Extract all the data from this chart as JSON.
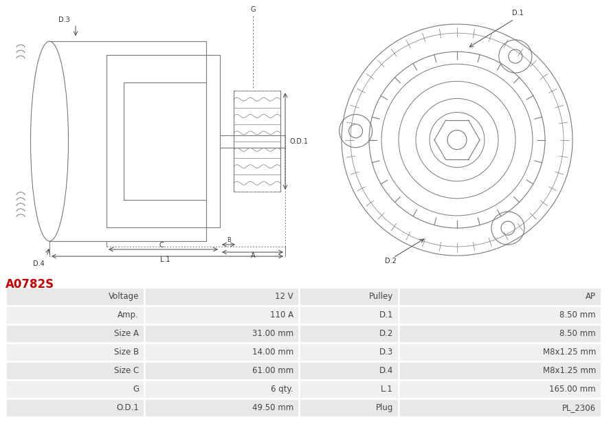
{
  "title": "A0782S",
  "title_color": "#cc0000",
  "bg_color": "#ffffff",
  "table_row_bg1": "#e8e8e8",
  "table_row_bg2": "#f0f0f0",
  "table_border_color": "#ffffff",
  "left_labels": [
    "Voltage",
    "Amp.",
    "Size A",
    "Size B",
    "Size C",
    "G",
    "O.D.1"
  ],
  "left_values": [
    "12 V",
    "110 A",
    "31.00 mm",
    "14.00 mm",
    "61.00 mm",
    "6 qty.",
    "49.50 mm"
  ],
  "right_labels": [
    "Pulley",
    "D.1",
    "D.2",
    "D.3",
    "D.4",
    "L.1",
    "Plug"
  ],
  "right_values": [
    "AP",
    "8.50 mm",
    "8.50 mm",
    "M8x1.25 mm",
    "M8x1.25 mm",
    "165.00 mm",
    "PL_2306"
  ]
}
